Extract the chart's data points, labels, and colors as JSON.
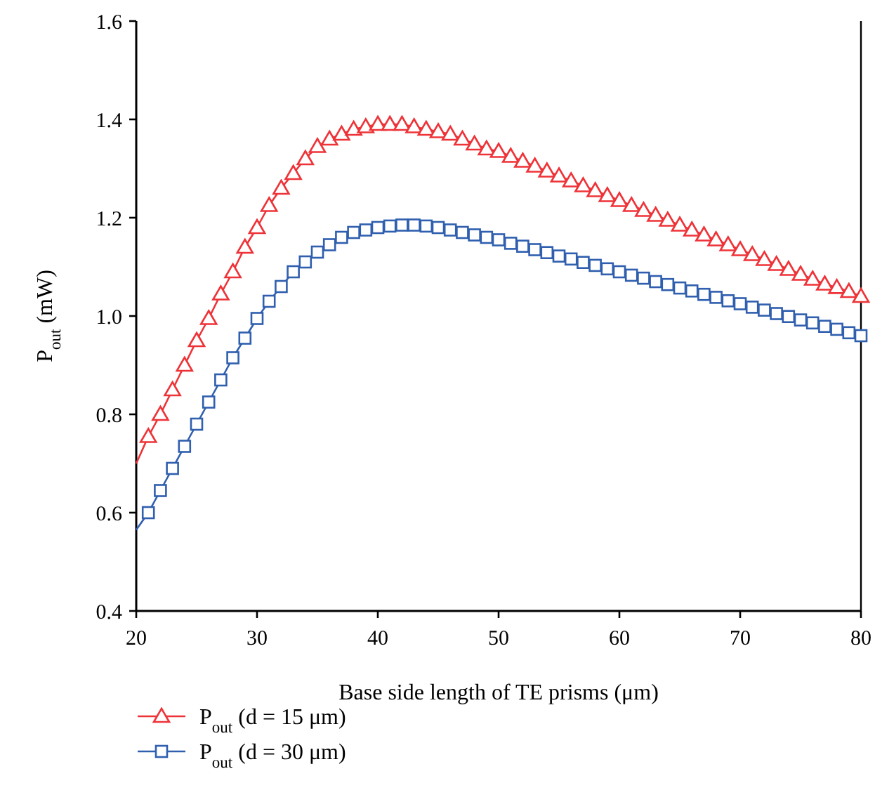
{
  "chart_data": {
    "type": "line",
    "xlabel": "Base side length of TE prisms (μm)",
    "ylabel": "P$_{out}$  (mW)",
    "x": [
      20,
      21,
      22,
      23,
      24,
      25,
      26,
      27,
      28,
      29,
      30,
      31,
      32,
      33,
      34,
      35,
      36,
      37,
      38,
      39,
      40,
      41,
      42,
      43,
      44,
      45,
      46,
      47,
      48,
      49,
      50,
      51,
      52,
      53,
      54,
      55,
      56,
      57,
      58,
      59,
      60,
      61,
      62,
      63,
      64,
      65,
      66,
      67,
      68,
      69,
      70,
      71,
      72,
      73,
      74,
      75,
      76,
      77,
      78,
      79,
      80
    ],
    "xlim": [
      20,
      80
    ],
    "xticks": [
      20,
      30,
      40,
      50,
      60,
      70,
      80
    ],
    "ylim": [
      0.4,
      1.6
    ],
    "yticks": [
      0.4,
      0.6,
      0.8,
      {
        "value": 1,
        "label": "1.0"
      },
      1.2,
      1.4,
      1.6
    ],
    "legend": "bottom left",
    "grid": false,
    "line_style": "solid",
    "series": [
      {
        "name": "P$_{out}$  (d = 15 μm)",
        "color": "#ee3338",
        "marker": "triangle",
        "values": [
          0.7,
          0.755,
          0.8,
          0.85,
          0.9,
          0.95,
          0.995,
          1.045,
          1.09,
          1.14,
          1.18,
          1.225,
          1.26,
          1.29,
          1.32,
          1.345,
          1.36,
          1.37,
          1.38,
          1.385,
          1.39,
          1.39,
          1.39,
          1.385,
          1.38,
          1.375,
          1.37,
          1.36,
          1.35,
          1.34,
          1.335,
          1.325,
          1.315,
          1.305,
          1.295,
          1.285,
          1.275,
          1.265,
          1.255,
          1.245,
          1.235,
          1.225,
          1.215,
          1.205,
          1.195,
          1.185,
          1.175,
          1.165,
          1.155,
          1.145,
          1.135,
          1.125,
          1.115,
          1.105,
          1.095,
          1.085,
          1.075,
          1.065,
          1.058,
          1.05,
          1.04
        ]
      },
      {
        "name": "P$_{out}$  (d = 30 μm)",
        "color": "#2f5fae",
        "marker": "square",
        "values": [
          0.565,
          0.6,
          0.645,
          0.69,
          0.735,
          0.78,
          0.825,
          0.87,
          0.915,
          0.955,
          0.995,
          1.03,
          1.06,
          1.09,
          1.11,
          1.13,
          1.145,
          1.16,
          1.17,
          1.175,
          1.18,
          1.183,
          1.185,
          1.185,
          1.183,
          1.18,
          1.175,
          1.17,
          1.165,
          1.16,
          1.155,
          1.148,
          1.142,
          1.135,
          1.129,
          1.122,
          1.116,
          1.109,
          1.103,
          1.096,
          1.09,
          1.083,
          1.077,
          1.07,
          1.064,
          1.057,
          1.051,
          1.044,
          1.038,
          1.031,
          1.025,
          1.018,
          1.012,
          1.005,
          0.999,
          0.992,
          0.986,
          0.979,
          0.973,
          0.966,
          0.96
        ]
      }
    ]
  }
}
